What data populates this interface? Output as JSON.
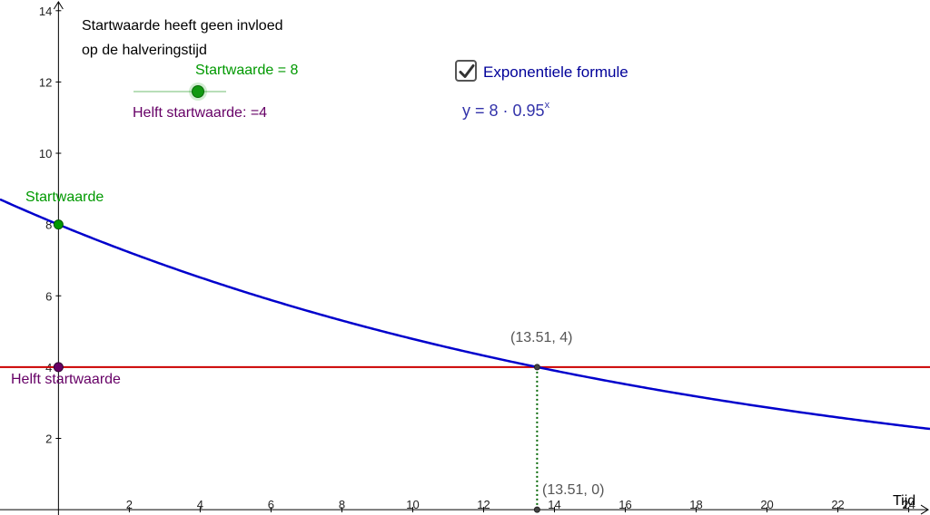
{
  "description": {
    "line1": "Startwaarde heeft geen invloed",
    "line2": "op de halveringstijd"
  },
  "slider": {
    "label": "Startwaarde = 8",
    "value": 8,
    "min": 1,
    "max": 11
  },
  "helft_label": "Helft startwaarde: =4",
  "checkbox": {
    "checked": true,
    "label": "Exponentiele formule"
  },
  "formula": {
    "base": "y = 8 · 0.95",
    "exponent": "x"
  },
  "colors": {
    "curve": "#0000cc",
    "half_line": "#cc0000",
    "start_point": "#009900",
    "half_point": "#660066",
    "dotted_line": "#006600",
    "axis": "#000000"
  },
  "chart_data": {
    "type": "line",
    "function": "y = 8 * 0.95^x",
    "start_value": 8,
    "growth_factor": 0.95,
    "x_axis_label": "Tijd",
    "xlim": [
      -1.65,
      24.6
    ],
    "ylim": [
      -0.15,
      14.3
    ],
    "x_ticks": [
      2,
      4,
      6,
      8,
      10,
      12,
      14,
      16,
      18,
      20,
      22,
      24
    ],
    "y_ticks": [
      2,
      4,
      6,
      8,
      10,
      12,
      14
    ],
    "horizontal_line_y": 4,
    "points": [
      {
        "x": 0,
        "y": 8,
        "label": "Startwaarde"
      },
      {
        "x": 0,
        "y": 4,
        "label": "Helft startwaarde"
      },
      {
        "x": 13.51,
        "y": 4,
        "label": "(13.51, 4)"
      },
      {
        "x": 13.51,
        "y": 0,
        "label": "(13.51, 0)"
      }
    ]
  }
}
